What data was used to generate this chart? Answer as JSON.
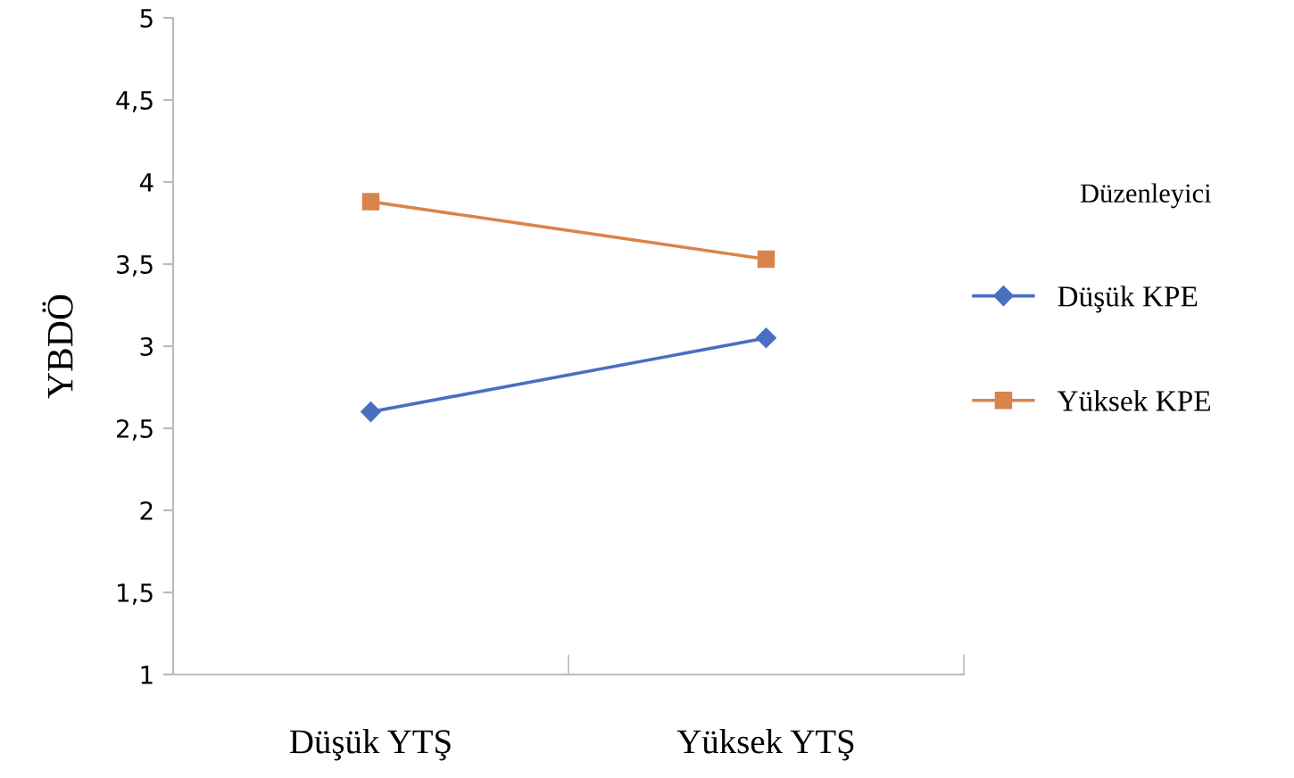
{
  "chart_data": {
    "type": "line",
    "ylabel": "YBDÖ",
    "legend_title": "Düzenleyici",
    "legend": "right",
    "categories": [
      "Düşük YTŞ",
      "Yüksek YTŞ"
    ],
    "series": [
      {
        "name": "Düşük KPE",
        "color": "#4a6fc0",
        "marker": "diamond",
        "values": [
          2.6,
          3.05
        ]
      },
      {
        "name": "Yüksek KPE",
        "color": "#d9844a",
        "marker": "square",
        "values": [
          3.88,
          3.53
        ]
      }
    ],
    "ylim": [
      1,
      5
    ],
    "yticks": [
      1,
      {
        "value": 1.5,
        "label": "1,5"
      },
      2,
      {
        "value": 2.5,
        "label": "2,5"
      },
      3,
      {
        "value": 3.5,
        "label": "3,5"
      },
      4,
      {
        "value": 4.5,
        "label": "4,5"
      },
      5
    ],
    "grid": false
  }
}
